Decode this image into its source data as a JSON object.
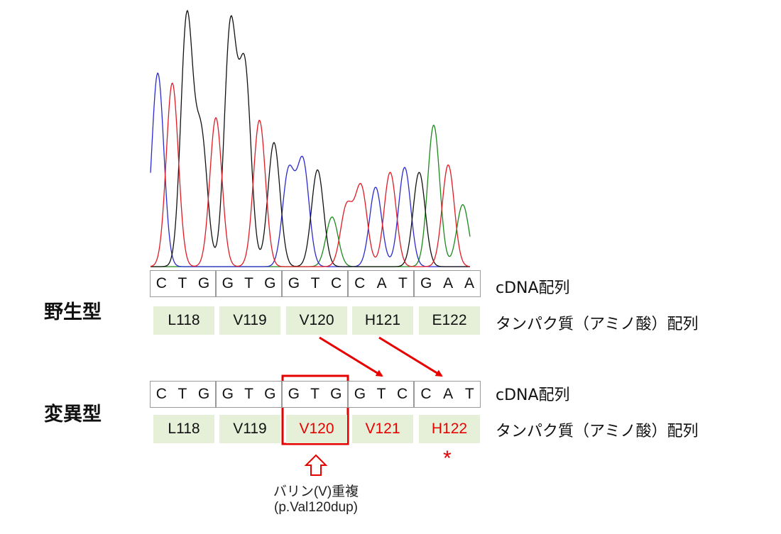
{
  "colors": {
    "A": "#1a8a1a",
    "C": "#2a2ad0",
    "G": "#111111",
    "T": "#e01b24",
    "highlight": "#e60000",
    "aa_bg": "#e6f0d9"
  },
  "wild": {
    "row_label": "野生型",
    "codons": [
      [
        "C",
        "T",
        "G"
      ],
      [
        "G",
        "T",
        "G"
      ],
      [
        "G",
        "T",
        "C"
      ],
      [
        "C",
        "A",
        "T"
      ],
      [
        "G",
        "A",
        "A"
      ]
    ],
    "cdna_label": "cDNA配列",
    "aminos": [
      "L118",
      "V119",
      "V120",
      "H121",
      "E122"
    ],
    "protein_label": "タンパク質（アミノ酸）配列"
  },
  "mutant": {
    "row_label": "変異型",
    "codons": [
      [
        "C",
        "T",
        "G"
      ],
      [
        "G",
        "T",
        "G"
      ],
      [
        "G",
        "T",
        "G"
      ],
      [
        "G",
        "T",
        "C"
      ],
      [
        "C",
        "A",
        "T"
      ]
    ],
    "cdna_label": "cDNA配列",
    "aminos": [
      "L118",
      "V119",
      "V120",
      "V121",
      "H122"
    ],
    "protein_label": "タンパク質（アミノ酸）配列"
  },
  "annotation": {
    "line1": "バリン(V)重複",
    "line2": "(p.Val120dup)",
    "asterisk": "*"
  },
  "chromatogram": {
    "peaks": [
      {
        "base": "C",
        "height": 0.78
      },
      {
        "base": "T",
        "height": 0.74
      },
      {
        "base": "G",
        "height": 1.0
      },
      {
        "base": "G",
        "height": 0.52
      },
      {
        "base": "T",
        "height": 0.6
      },
      {
        "base": "G",
        "height": 0.96
      },
      {
        "base": "G",
        "height": 0.79
      },
      {
        "base": "T",
        "height": 0.59
      },
      {
        "base": "G",
        "height": 0.5
      },
      {
        "base": "C",
        "height": 0.38
      },
      {
        "base": "C",
        "height": 0.42
      },
      {
        "base": "G",
        "height": 0.39
      },
      {
        "base": "A",
        "height": 0.2
      },
      {
        "base": "T",
        "height": 0.24
      },
      {
        "base": "T",
        "height": 0.32
      },
      {
        "base": "C",
        "height": 0.32
      },
      {
        "base": "T",
        "height": 0.38
      },
      {
        "base": "C",
        "height": 0.4
      },
      {
        "base": "G",
        "height": 0.38
      },
      {
        "base": "A",
        "height": 0.57
      },
      {
        "base": "T",
        "height": 0.41
      },
      {
        "base": "A",
        "height": 0.25
      }
    ]
  }
}
